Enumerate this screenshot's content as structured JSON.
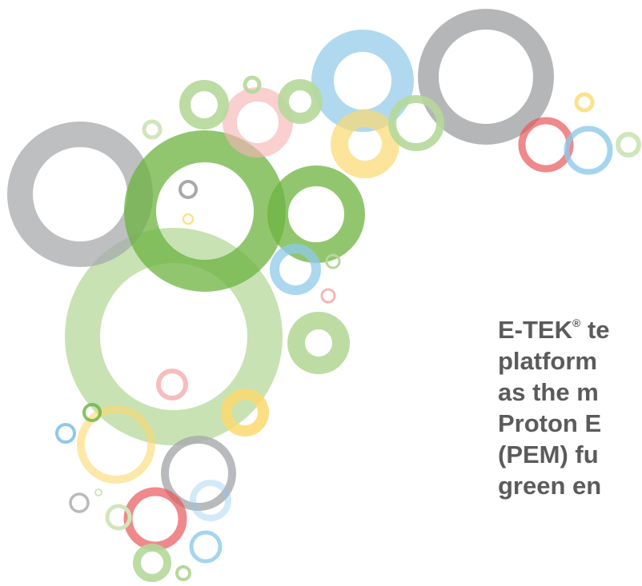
{
  "headline": {
    "line1_brand": "E-TEK",
    "line1_mark": "®",
    "line1_rest": " te",
    "line2": "platform",
    "line3": "as the m",
    "line4": "Proton E",
    "line5": "(PEM) fu",
    "line6": "green en"
  },
  "colors": {
    "text": "#5b5b5b",
    "gray": "#a7a9ac",
    "green": "#6cb33f",
    "light_green": "#b5d89a",
    "blue": "#8fc9ea",
    "pink": "#f6b6b6",
    "red": "#e8575a",
    "yellow": "#fbd970"
  },
  "decoration": {
    "icon": "overlapping-circles-graphic"
  }
}
